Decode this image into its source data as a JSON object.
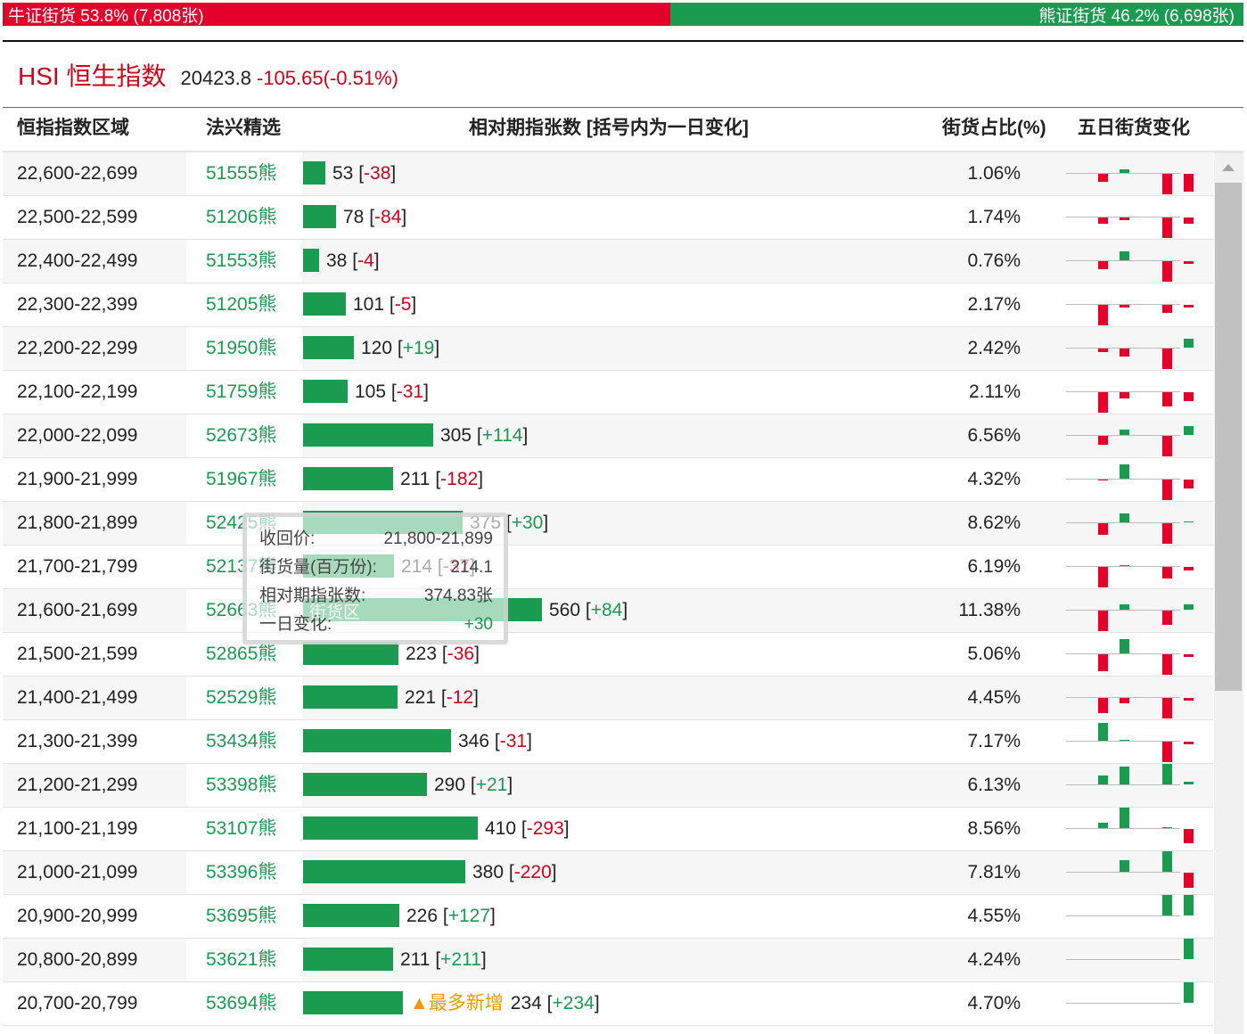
{
  "ratio": {
    "bull_label": "牛证街货 53.8% (7,808张)",
    "bear_label": "熊证街货 46.2% (6,698张)",
    "bull_pct": 53.8,
    "bull_color": "#e4002b",
    "bear_color": "#1a9b50"
  },
  "index": {
    "name": "HSI 恒生指数",
    "price": "20423.8",
    "change": "-105.65(-0.51%)"
  },
  "header": {
    "range": "恒指指数区域",
    "pick": "法兴精选",
    "contracts": "相对期指张数 [括号内为一日变化]",
    "pct": "街货占比(%)",
    "five_day": "五日街货变化"
  },
  "max_contracts": 600,
  "rows": [
    {
      "range": "22,600-22,699",
      "pick": "51555熊",
      "contracts": 53,
      "contracts_label": "53",
      "change": "-38",
      "pct": "1.06%",
      "spark": [
        -6,
        3,
        0,
        -16,
        -14
      ]
    },
    {
      "range": "22,500-22,599",
      "pick": "51206熊",
      "contracts": 78,
      "contracts_label": "78",
      "change": "-84",
      "pct": "1.74%",
      "spark": [
        -5,
        -2,
        0,
        -16,
        -5
      ]
    },
    {
      "range": "22,400-22,499",
      "pick": "51553熊",
      "contracts": 38,
      "contracts_label": "38",
      "change": "-4",
      "pct": "0.76%",
      "spark": [
        -6,
        7,
        0,
        -16,
        -2
      ]
    },
    {
      "range": "22,300-22,399",
      "pick": "51205熊",
      "contracts": 101,
      "contracts_label": "101",
      "change": "-5",
      "pct": "2.17%",
      "spark": [
        -16,
        -2,
        0,
        -6,
        -2
      ]
    },
    {
      "range": "22,200-22,299",
      "pick": "51950熊",
      "contracts": 120,
      "contracts_label": "120",
      "change": "+19",
      "pct": "2.42%",
      "spark": [
        -3,
        -6,
        0,
        -16,
        7
      ]
    },
    {
      "range": "22,100-22,199",
      "pick": "51759熊",
      "contracts": 105,
      "contracts_label": "105",
      "change": "-31",
      "pct": "2.11%",
      "spark": [
        -16,
        -5,
        0,
        -11,
        -7
      ]
    },
    {
      "range": "22,000-22,099",
      "pick": "52673熊",
      "contracts": 305,
      "contracts_label": "305",
      "change": "+114",
      "pct": "6.56%",
      "spark": [
        -7,
        4,
        0,
        -16,
        7
      ]
    },
    {
      "range": "21,900-21,999",
      "pick": "51967熊",
      "contracts": 211,
      "contracts_label": "211",
      "change": "-182",
      "pct": "4.32%",
      "spark": [
        -1,
        11,
        0,
        -16,
        -7
      ]
    },
    {
      "range": "21,800-21,899",
      "pick": "52425熊",
      "contracts": 375,
      "contracts_label": "375",
      "change": "+30",
      "pct": "8.62%",
      "spark": [
        -9,
        7,
        0,
        -16,
        1
      ]
    },
    {
      "range": "21,700-21,799",
      "pick": "52137熊",
      "contracts": 214,
      "contracts_label": "214",
      "change": "-37",
      "pct": "6.19%",
      "spark": [
        -16,
        1,
        0,
        -9,
        -3
      ]
    },
    {
      "range": "21,600-21,699",
      "pick": "52663熊",
      "contracts": 560,
      "contracts_label": "560",
      "change": "+84",
      "pct": "11.38%",
      "spark": [
        -16,
        4,
        0,
        -11,
        4
      ]
    },
    {
      "range": "21,500-21,599",
      "pick": "52865熊",
      "contracts": 223,
      "contracts_label": "223",
      "change": "-36",
      "pct": "5.06%",
      "spark": [
        -13,
        11,
        0,
        -16,
        -2
      ]
    },
    {
      "range": "21,400-21,499",
      "pick": "52529熊",
      "contracts": 221,
      "contracts_label": "221",
      "change": "-12",
      "pct": "4.45%",
      "spark": [
        -12,
        -4,
        0,
        -16,
        -2
      ]
    },
    {
      "range": "21,300-21,399",
      "pick": "53434熊",
      "contracts": 346,
      "contracts_label": "346",
      "change": "-31",
      "pct": "7.17%",
      "spark": [
        14,
        1,
        0,
        -16,
        -2
      ]
    },
    {
      "range": "21,200-21,299",
      "pick": "53398熊",
      "contracts": 290,
      "contracts_label": "290",
      "change": "+21",
      "pct": "6.13%",
      "spark": [
        7,
        14,
        0,
        16,
        2
      ]
    },
    {
      "range": "21,100-21,199",
      "pick": "53107熊",
      "contracts": 410,
      "contracts_label": "410",
      "change": "-293",
      "pct": "8.56%",
      "spark": [
        4,
        16,
        0,
        1,
        -11
      ]
    },
    {
      "range": "21,000-21,099",
      "pick": "53396熊",
      "contracts": 380,
      "contracts_label": "380",
      "change": "-220",
      "pct": "7.81%",
      "spark": [
        0,
        9,
        0,
        16,
        -12
      ]
    },
    {
      "range": "20,900-20,999",
      "pick": "53695熊",
      "contracts": 226,
      "contracts_label": "226",
      "change": "+127",
      "pct": "4.55%",
      "spark": [
        0,
        0,
        0,
        16,
        16
      ]
    },
    {
      "range": "20,800-20,899",
      "pick": "53621熊",
      "contracts": 211,
      "contracts_label": "211",
      "change": "+211",
      "pct": "4.24%",
      "spark": [
        0,
        0,
        0,
        0,
        16
      ]
    },
    {
      "range": "20,700-20,799",
      "pick": "53694熊",
      "contracts": 234,
      "contracts_label": "234",
      "change": "+234",
      "pct": "4.70%",
      "spark": [
        0,
        0,
        0,
        0,
        16
      ],
      "tag": "▲最多新增"
    }
  ],
  "tooltip": {
    "k1": "收回价:",
    "v1": "21,800-21,899",
    "k2": "街货量(百万份):",
    "v2": "214.1",
    "k3": "相对期指张数:",
    "v3": "374.83张",
    "k4": "一日变化:",
    "v4": "+30",
    "zone": "街货区"
  }
}
